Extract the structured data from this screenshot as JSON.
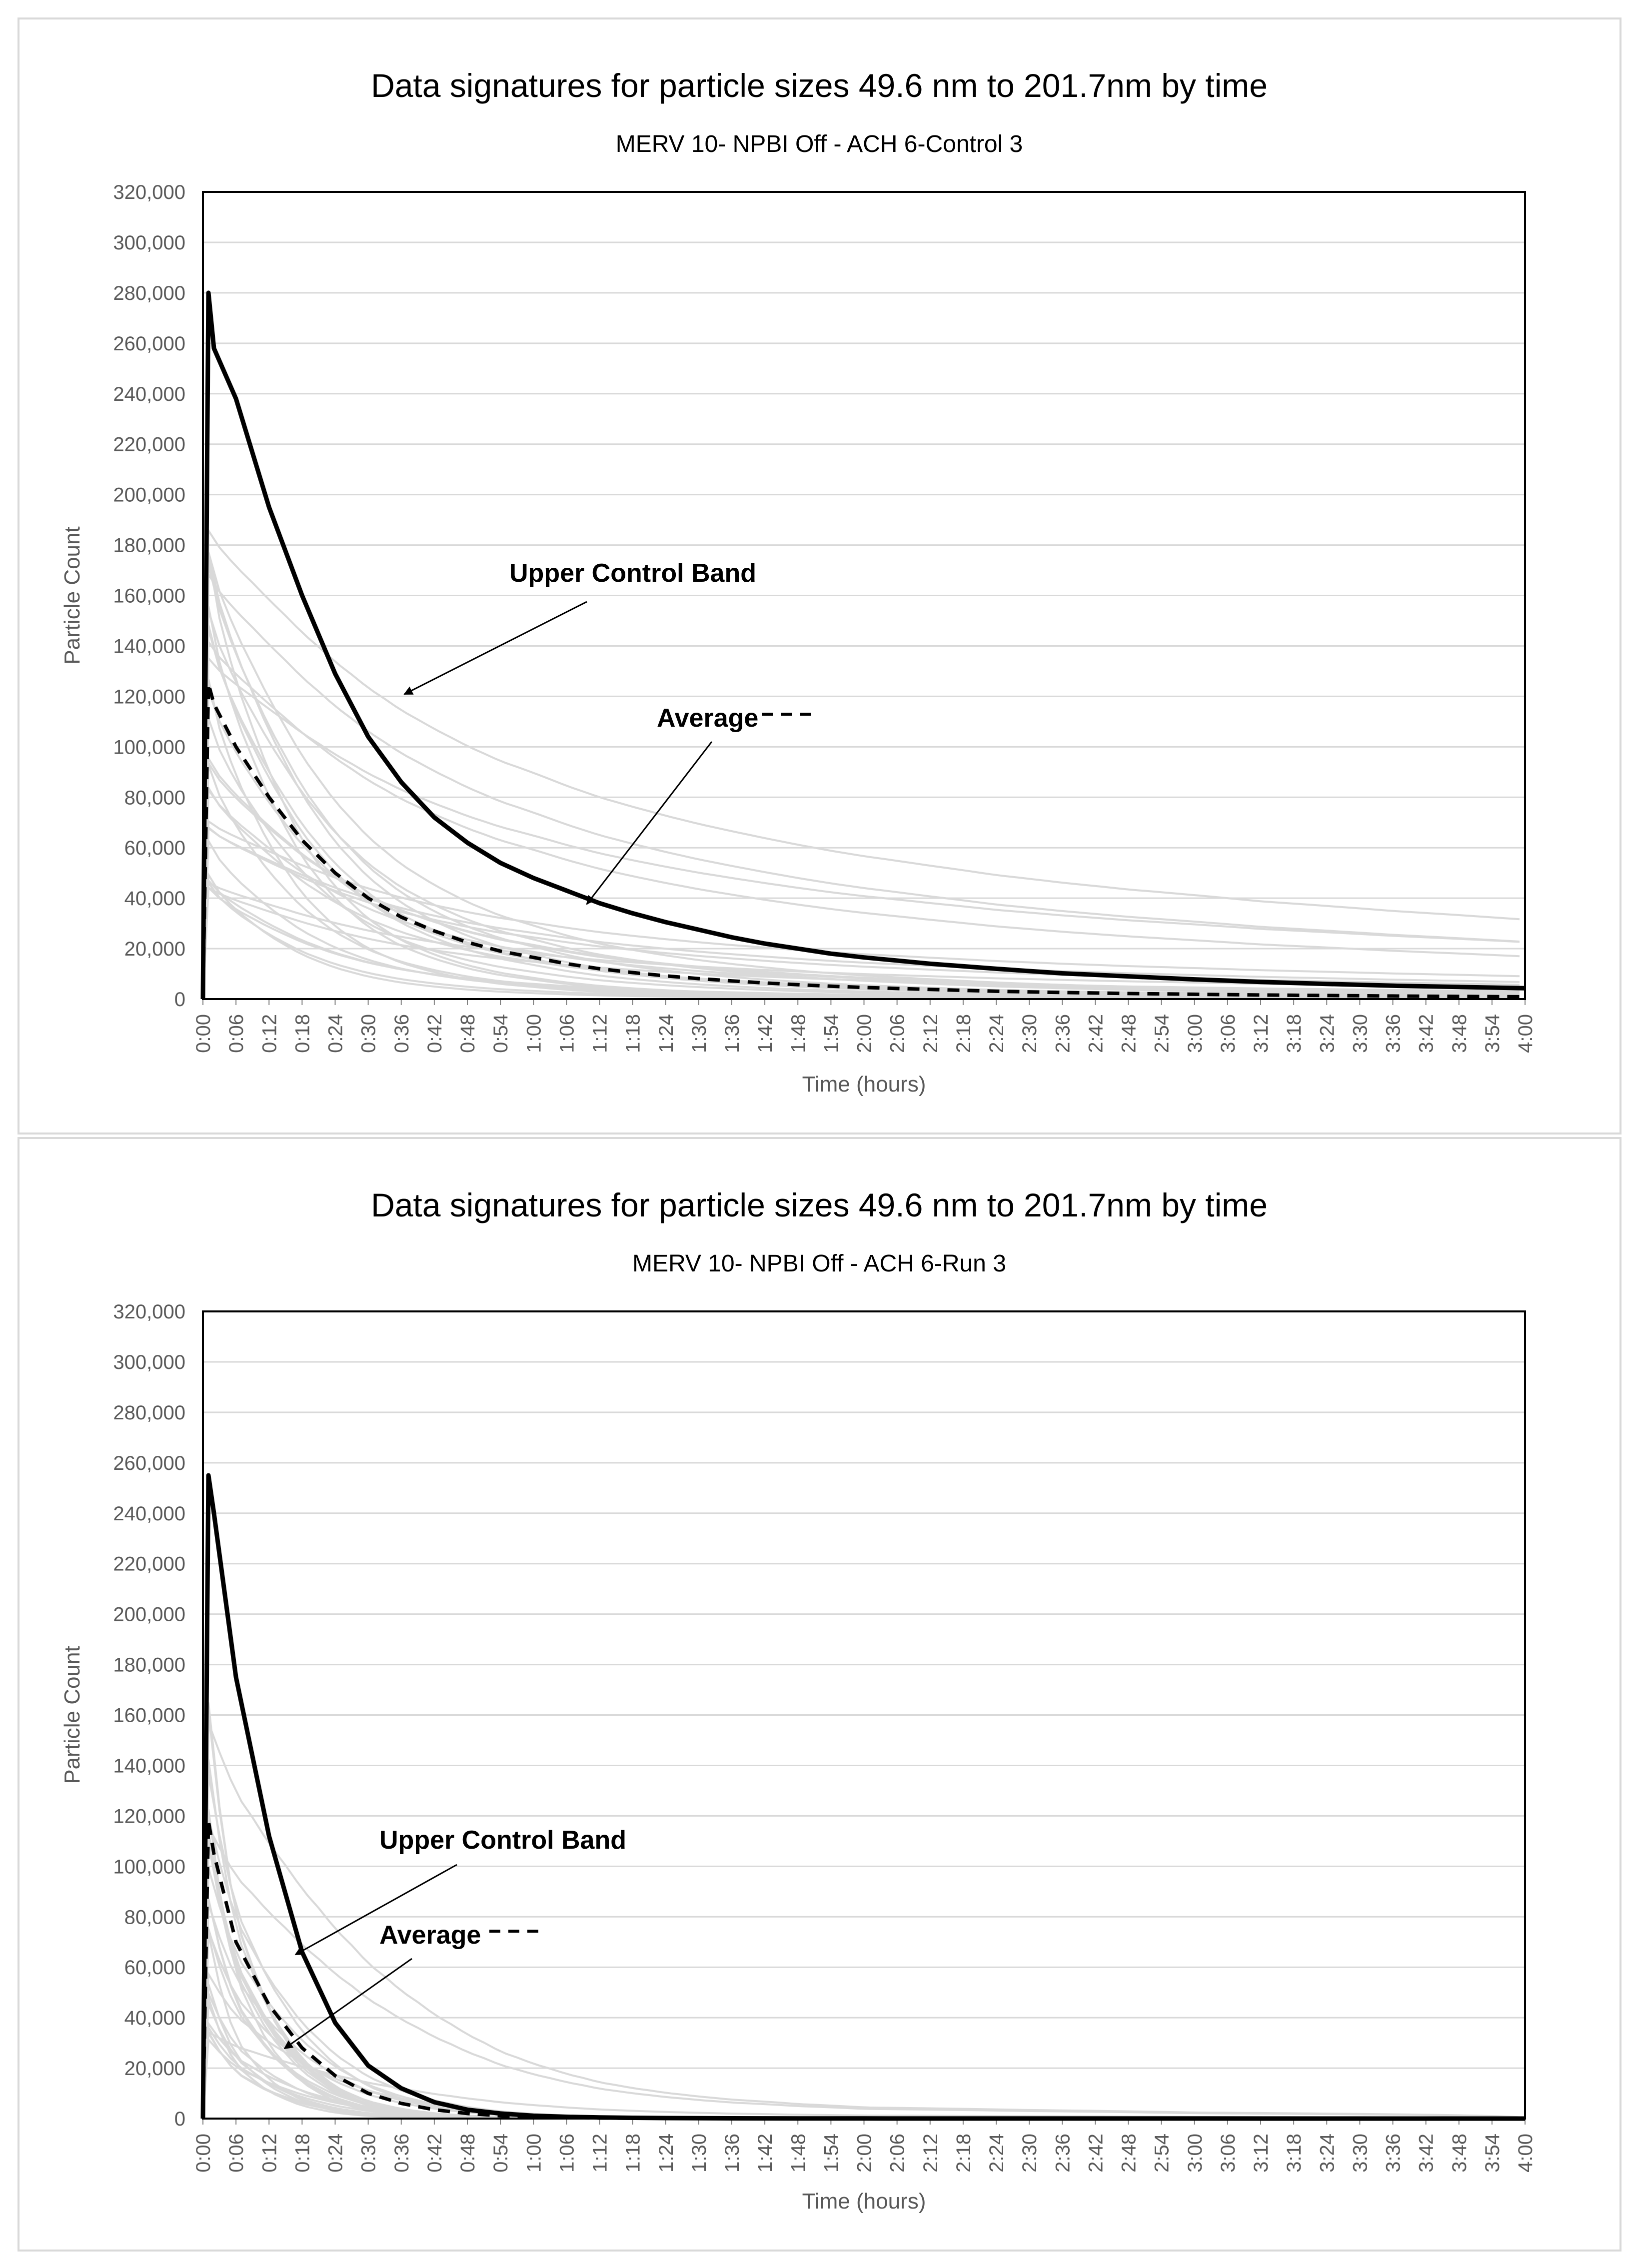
{
  "chart_data": [
    {
      "type": "line",
      "title": "Data signatures for particle sizes 49.6 nm to 201.7nm by time",
      "subtitle": "MERV 10- NPBI Off - ACH 6-Control 3",
      "xlabel": "Time (hours)",
      "ylabel": "Particle Count",
      "ylim": [
        0,
        320000
      ],
      "y_ticks": [
        "0",
        "20,000",
        "40,000",
        "60,000",
        "80,000",
        "100,000",
        "120,000",
        "140,000",
        "160,000",
        "180,000",
        "200,000",
        "220,000",
        "240,000",
        "260,000",
        "280,000",
        "300,000",
        "320,000"
      ],
      "x_ticks": [
        "0:00",
        "0:06",
        "0:12",
        "0:18",
        "0:24",
        "0:30",
        "0:36",
        "0:42",
        "0:48",
        "0:54",
        "1:00",
        "1:06",
        "1:12",
        "1:18",
        "1:24",
        "1:30",
        "1:36",
        "1:42",
        "1:48",
        "1:54",
        "2:00",
        "2:06",
        "2:12",
        "2:18",
        "2:24",
        "2:30",
        "2:36",
        "2:42",
        "2:48",
        "2:54",
        "3:00",
        "3:06",
        "3:12",
        "3:18",
        "3:24",
        "3:30",
        "3:36",
        "3:42",
        "3:48",
        "3:54",
        "4:00"
      ],
      "grid": true,
      "series": [
        {
          "name": "Upper Control Band",
          "style": "solid-black-thick",
          "x": [
            "0:00",
            "0:01",
            "0:02",
            "0:06",
            "0:12",
            "0:18",
            "0:24",
            "0:30",
            "0:36",
            "0:42",
            "0:48",
            "0:54",
            "1:00",
            "1:06",
            "1:12",
            "1:18",
            "1:24",
            "1:30",
            "1:36",
            "1:42",
            "1:48",
            "1:54",
            "2:00",
            "2:12",
            "2:24",
            "2:36",
            "2:48",
            "3:00",
            "3:12",
            "3:24",
            "3:36",
            "3:48",
            "4:00"
          ],
          "values": [
            0,
            280000,
            258000,
            238000,
            195000,
            160000,
            129000,
            104000,
            86000,
            72000,
            62000,
            54000,
            48000,
            43000,
            38000,
            34000,
            30500,
            27500,
            24500,
            22000,
            20000,
            18000,
            16500,
            14000,
            12000,
            10200,
            9000,
            7800,
            6800,
            6000,
            5300,
            4800,
            4300
          ]
        },
        {
          "name": "Average",
          "style": "dashed-black",
          "x": [
            "0:00",
            "0:01",
            "0:02",
            "0:06",
            "0:12",
            "0:18",
            "0:24",
            "0:30",
            "0:36",
            "0:42",
            "0:48",
            "0:54",
            "1:00",
            "1:06",
            "1:12",
            "1:18",
            "1:24",
            "1:30",
            "1:36",
            "1:42",
            "1:48",
            "1:54",
            "2:00",
            "2:12",
            "2:24",
            "2:36",
            "2:48",
            "3:00",
            "3:12",
            "3:24",
            "3:36",
            "3:48",
            "4:00"
          ],
          "values": [
            0,
            125000,
            117000,
            100000,
            80000,
            63000,
            50000,
            40000,
            32500,
            27000,
            22500,
            19000,
            16500,
            14000,
            12000,
            10500,
            9200,
            8100,
            7200,
            6400,
            5700,
            5100,
            4600,
            3800,
            3100,
            2600,
            2200,
            1900,
            1600,
            1400,
            1200,
            1050,
            900
          ]
        }
      ],
      "annotations": [
        {
          "text": "Upper Control Band",
          "points_to": "Upper Control Band"
        },
        {
          "text": "Average",
          "legend_style": "dashed"
        }
      ],
      "background_lines": {
        "color": "#d9d9d9",
        "count": 30,
        "description_range_peak": [
          30000,
          190000
        ]
      }
    },
    {
      "type": "line",
      "title": "Data signatures for particle sizes 49.6 nm to 201.7nm by time",
      "subtitle": "MERV 10- NPBI Off - ACH 6-Run 3",
      "xlabel": "Time (hours)",
      "ylabel": "Particle Count",
      "ylim": [
        0,
        320000
      ],
      "y_ticks": [
        "0",
        "20,000",
        "40,000",
        "60,000",
        "80,000",
        "100,000",
        "120,000",
        "140,000",
        "160,000",
        "180,000",
        "200,000",
        "220,000",
        "240,000",
        "260,000",
        "280,000",
        "300,000",
        "320,000"
      ],
      "x_ticks": [
        "0:00",
        "0:06",
        "0:12",
        "0:18",
        "0:24",
        "0:30",
        "0:36",
        "0:42",
        "0:48",
        "0:54",
        "1:00",
        "1:06",
        "1:12",
        "1:18",
        "1:24",
        "1:30",
        "1:36",
        "1:42",
        "1:48",
        "1:54",
        "2:00",
        "2:06",
        "2:12",
        "2:18",
        "2:24",
        "2:30",
        "2:36",
        "2:42",
        "2:48",
        "2:54",
        "3:00",
        "3:06",
        "3:12",
        "3:18",
        "3:24",
        "3:30",
        "3:36",
        "3:42",
        "3:48",
        "3:54",
        "4:00"
      ],
      "grid": true,
      "series": [
        {
          "name": "Upper Control Band",
          "style": "solid-black-thick",
          "x": [
            "0:00",
            "0:01",
            "0:02",
            "0:06",
            "0:12",
            "0:18",
            "0:24",
            "0:30",
            "0:36",
            "0:42",
            "0:48",
            "0:54",
            "1:00",
            "1:06",
            "1:12",
            "1:18",
            "1:24",
            "1:30",
            "1:36",
            "1:42",
            "1:48",
            "2:00",
            "2:30",
            "3:00",
            "3:30",
            "4:00"
          ],
          "values": [
            0,
            255000,
            240000,
            175000,
            112000,
            66000,
            38000,
            21000,
            12000,
            6500,
            3500,
            2000,
            1100,
            700,
            450,
            300,
            200,
            150,
            100,
            80,
            60,
            40,
            20,
            10,
            5,
            0
          ]
        },
        {
          "name": "Average",
          "style": "dashed-black",
          "x": [
            "0:00",
            "0:01",
            "0:02",
            "0:06",
            "0:12",
            "0:18",
            "0:24",
            "0:30",
            "0:36",
            "0:42",
            "0:48",
            "0:54",
            "1:00",
            "1:06",
            "1:12",
            "1:18",
            "1:24",
            "1:30",
            "1:36",
            "1:48",
            "2:00",
            "2:30",
            "3:00",
            "3:30",
            "4:00"
          ],
          "values": [
            0,
            118000,
            105000,
            70000,
            45000,
            28000,
            17000,
            10000,
            6000,
            3500,
            2000,
            1100,
            650,
            380,
            220,
            140,
            90,
            60,
            40,
            20,
            10,
            5,
            2,
            1,
            0
          ]
        }
      ],
      "annotations": [
        {
          "text": "Upper Control Band",
          "points_to": "Upper Control Band"
        },
        {
          "text": "Average",
          "legend_style": "dashed"
        }
      ],
      "background_lines": {
        "color": "#d9d9d9",
        "count": 30,
        "description_range_peak": [
          30000,
          170000
        ]
      }
    }
  ]
}
